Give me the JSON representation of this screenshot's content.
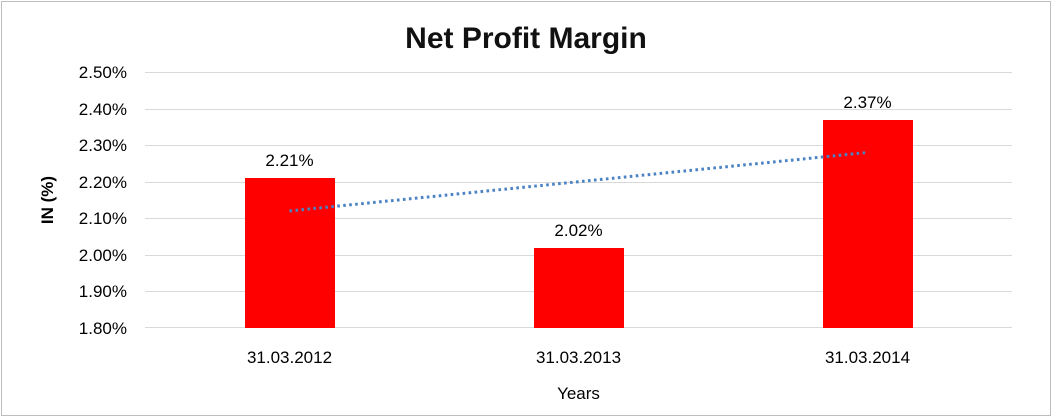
{
  "figure": {
    "background": "#ffffff",
    "border_color": "#bdbdbd"
  },
  "chart_data": {
    "type": "bar",
    "title": "Net Profit Margin",
    "xlabel": "Years",
    "ylabel": "IN (%)",
    "categories": [
      "31.03.2012",
      "31.03.2013",
      "31.03.2014"
    ],
    "values": [
      2.21,
      2.02,
      2.37
    ],
    "data_labels": [
      "2.21%",
      "2.02%",
      "2.37%"
    ],
    "ylim": [
      1.8,
      2.5
    ],
    "yticks": [
      2.5,
      2.4,
      2.3,
      2.2,
      2.1,
      2.0,
      1.9,
      1.8
    ],
    "ytick_labels": [
      "2.50%",
      "2.40%",
      "2.30%",
      "2.20%",
      "2.10%",
      "2.00%",
      "1.90%",
      "1.80%"
    ],
    "grid": true,
    "legend": false,
    "bar_color": "#ff0000",
    "gridline_color": "#d9d9d9",
    "text_color": "#000000",
    "trendline": {
      "type": "linear",
      "style": "dotted",
      "color": "#4a82c4",
      "x": [
        "31.03.2012",
        "31.03.2014"
      ],
      "values": [
        2.12,
        2.28
      ]
    }
  }
}
